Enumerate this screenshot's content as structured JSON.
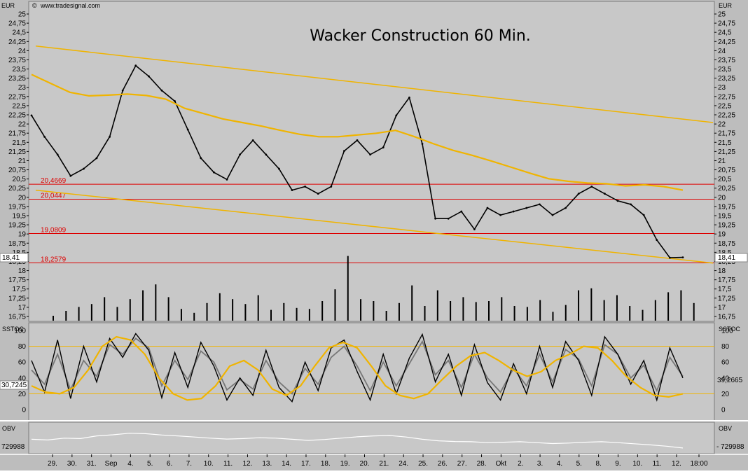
{
  "app": {
    "source": "www.tradesignal.com"
  },
  "chart_data": {
    "type": "line",
    "title": "Wacker Construction 60 Min.",
    "currency_label": "EUR",
    "price_axis": {
      "ylim": [
        16.75,
        25.25
      ],
      "ticks": [
        "25",
        "24,75",
        "24,5",
        "24,25",
        "24",
        "23,75",
        "23,5",
        "23,25",
        "23",
        "22,75",
        "22,5",
        "22,25",
        "22",
        "21,75",
        "21,5",
        "21,25",
        "21",
        "20,75",
        "20,5",
        "20,25",
        "20",
        "19,75",
        "19,5",
        "19,25",
        "19",
        "18,75",
        "18,5",
        "18,25",
        "18",
        "17,75",
        "17,5",
        "17,25",
        "17",
        "16,75"
      ]
    },
    "last_price": "18,41",
    "horizontal_levels": [
      {
        "label": "20,4669",
        "value": 20.4669,
        "color": "#dd0000"
      },
      {
        "label": "20,0447",
        "value": 20.0447,
        "color": "#dd0000"
      },
      {
        "label": "19,0809",
        "value": 19.0809,
        "color": "#dd0000"
      },
      {
        "label": "18,2579",
        "value": 18.2579,
        "color": "#dd0000"
      }
    ],
    "trend_channel": {
      "color": "#f0b400",
      "upper": [
        [
          0,
          24.35
        ],
        [
          1,
          22.2
        ]
      ],
      "lower": [
        [
          0,
          20.3
        ],
        [
          1,
          18.25
        ]
      ]
    },
    "moving_average": {
      "color": "#f0b400",
      "values": [
        23.55,
        23.3,
        23.05,
        22.95,
        22.97,
        23.0,
        22.96,
        22.86,
        22.6,
        22.45,
        22.3,
        22.2,
        22.1,
        21.98,
        21.87,
        21.8,
        21.8,
        21.85,
        21.9,
        21.98,
        21.8,
        21.6,
        21.42,
        21.28,
        21.12,
        20.95,
        20.78,
        20.62,
        20.55,
        20.5,
        20.48,
        20.42,
        20.45,
        20.4,
        20.3
      ]
    },
    "price_series": [
      22.4,
      21.8,
      21.3,
      20.7,
      20.9,
      21.2,
      21.8,
      23.1,
      23.8,
      23.5,
      23.1,
      22.8,
      22.0,
      21.2,
      20.8,
      20.6,
      21.3,
      21.7,
      21.3,
      20.9,
      20.3,
      20.4,
      20.2,
      20.4,
      21.4,
      21.7,
      21.3,
      21.5,
      22.4,
      22.9,
      21.6,
      19.5,
      19.5,
      19.7,
      19.2,
      19.8,
      19.6,
      19.7,
      19.8,
      19.9,
      19.6,
      19.8,
      20.2,
      20.4,
      20.2,
      20.0,
      19.9,
      19.6,
      18.9,
      18.4,
      18.41
    ],
    "volume_bars": [
      5,
      10,
      14,
      17,
      24,
      14,
      22,
      31,
      37,
      24,
      12,
      8,
      18,
      28,
      22,
      17,
      26,
      11,
      18,
      13,
      12,
      20,
      32,
      66,
      22,
      20,
      10,
      18,
      36,
      15,
      31,
      20,
      24,
      19,
      20,
      24,
      15,
      14,
      21,
      9,
      16,
      31,
      33,
      21,
      26,
      15,
      11,
      21,
      29,
      31,
      18
    ],
    "stochastic": {
      "label": "SSTOC",
      "ticks": [
        "100",
        "80",
        "60",
        "40",
        "20",
        "0"
      ],
      "levels": [
        80,
        20
      ],
      "last_value": "39,2665",
      "left_value": "30,7245",
      "fast": [
        62,
        22,
        88,
        14,
        80,
        35,
        90,
        66,
        96,
        75,
        15,
        72,
        28,
        85,
        55,
        12,
        40,
        18,
        75,
        28,
        10,
        60,
        24,
        78,
        88,
        48,
        12,
        70,
        20,
        65,
        95,
        35,
        70,
        18,
        82,
        34,
        12,
        58,
        20,
        80,
        28,
        86,
        62,
        18,
        92,
        70,
        32,
        62,
        12,
        78,
        40
      ],
      "slow": [
        50,
        32,
        70,
        25,
        62,
        42,
        82,
        70,
        90,
        78,
        30,
        62,
        38,
        74,
        60,
        25,
        38,
        26,
        62,
        35,
        20,
        52,
        32,
        66,
        80,
        55,
        24,
        60,
        30,
        58,
        86,
        44,
        62,
        28,
        70,
        40,
        22,
        52,
        30,
        70,
        35,
        76,
        64,
        30,
        82,
        70,
        40,
        56,
        24,
        66,
        42
      ],
      "trend": [
        30,
        22,
        20,
        28,
        50,
        80,
        92,
        88,
        70,
        40,
        20,
        12,
        14,
        30,
        55,
        62,
        50,
        26,
        18,
        30,
        55,
        78,
        85,
        78,
        55,
        30,
        18,
        14,
        20,
        38,
        55,
        68,
        72,
        62,
        50,
        42,
        48,
        62,
        70,
        80,
        78,
        62,
        42,
        28,
        18,
        16,
        20
      ]
    },
    "obv": {
      "label": "OBV",
      "left_value": "729988",
      "right_value": "- 729988",
      "values": [
        0.55,
        0.52,
        0.6,
        0.58,
        0.7,
        0.75,
        0.82,
        0.8,
        0.74,
        0.7,
        0.65,
        0.6,
        0.56,
        0.58,
        0.62,
        0.6,
        0.55,
        0.5,
        0.54,
        0.6,
        0.66,
        0.7,
        0.72,
        0.65,
        0.55,
        0.48,
        0.45,
        0.44,
        0.4,
        0.42,
        0.44,
        0.4,
        0.36,
        0.38,
        0.42,
        0.44,
        0.4,
        0.35,
        0.3,
        0.24,
        0.16
      ]
    },
    "x_labels": [
      "29.",
      "30.",
      "31.",
      "Sep",
      "4.",
      "5.",
      "6.",
      "7.",
      "10.",
      "11.",
      "12.",
      "13.",
      "14.",
      "17.",
      "18.",
      "19.",
      "20.",
      "21.",
      "24.",
      "25.",
      "26.",
      "27.",
      "28.",
      "Okt",
      "2.",
      "3.",
      "4.",
      "5.",
      "8.",
      "9.",
      "10.",
      "11.",
      "12.",
      "18:00"
    ]
  }
}
